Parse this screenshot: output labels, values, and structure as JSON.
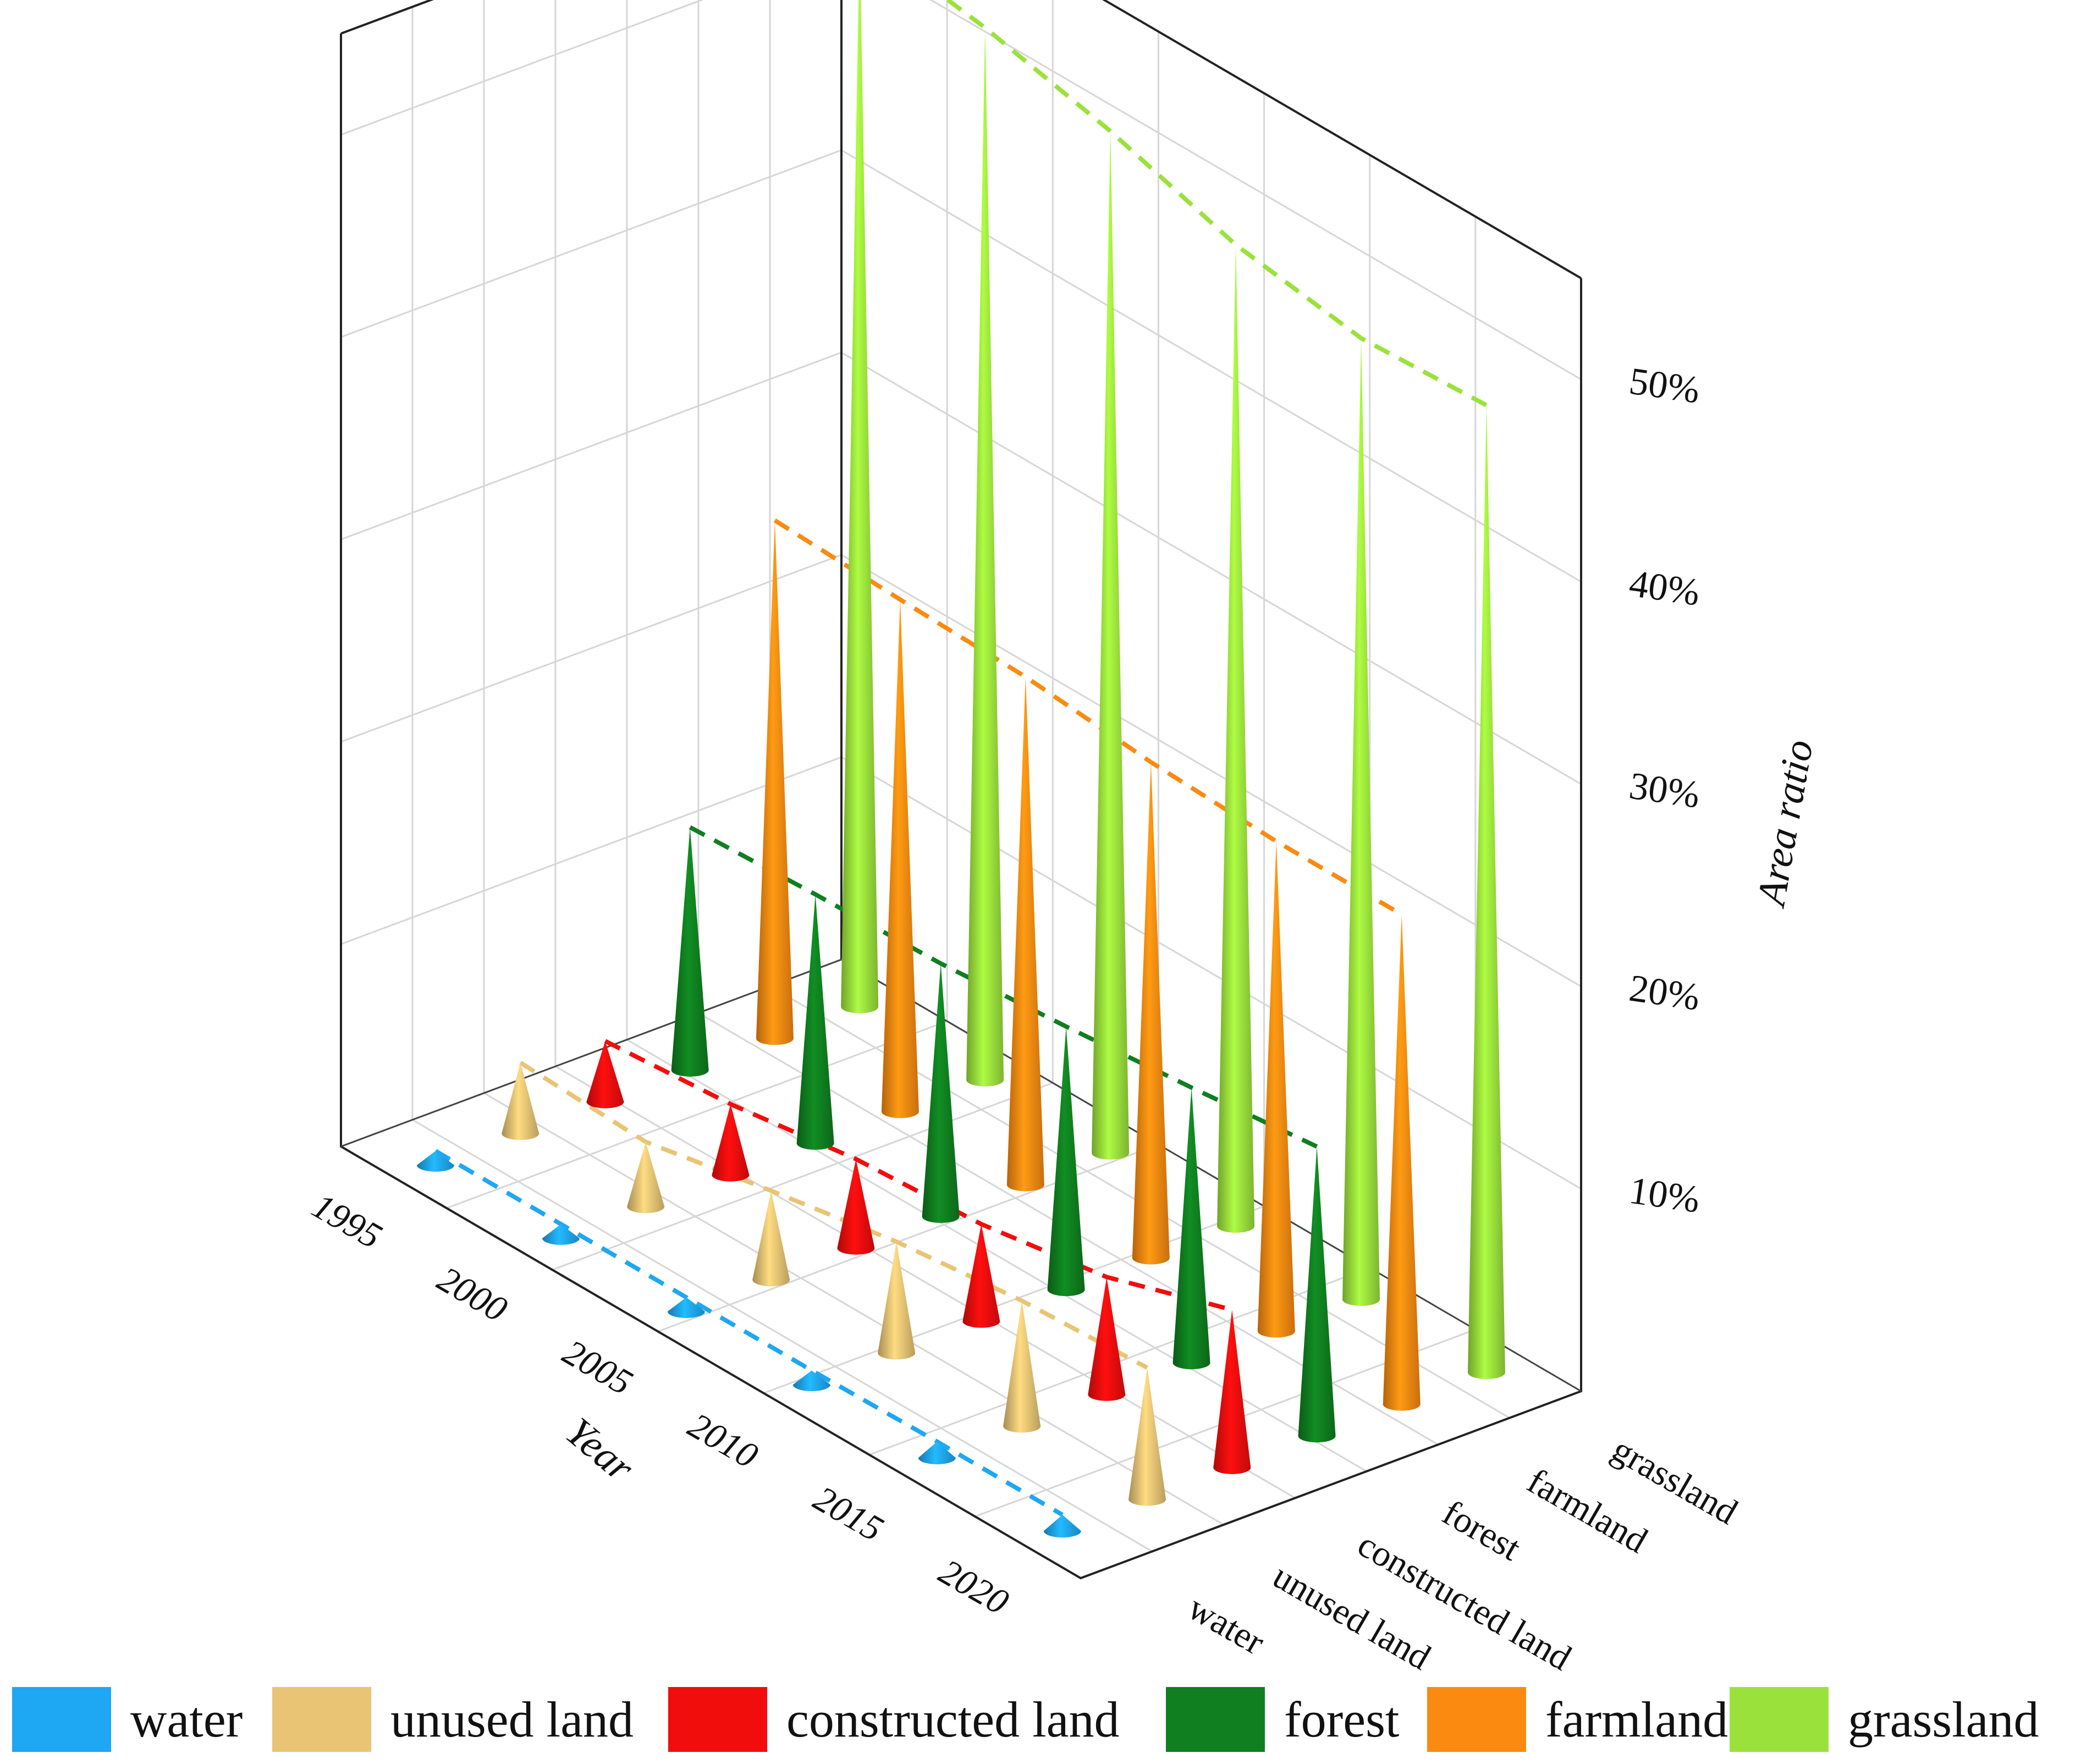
{
  "chart_data": {
    "type": "3d-cone-bar",
    "title": "",
    "xlabel": "Year",
    "ylabel": "",
    "zlabel": "Area ratio",
    "years": [
      "1995",
      "2000",
      "2005",
      "2010",
      "2015",
      "2020"
    ],
    "categories": [
      "water",
      "unused land",
      "constructed land",
      "forest",
      "farmland",
      "grassland"
    ],
    "z_ticks": [
      "10%",
      "20%",
      "30%",
      "40%",
      "50%"
    ],
    "zlim": [
      0,
      55
    ],
    "series": [
      {
        "name": "water",
        "color": "#1ea7f2",
        "values": [
          0.7,
          0.7,
          0.7,
          0.7,
          0.8,
          0.8
        ]
      },
      {
        "name": "unused land",
        "color": "#e8c474",
        "values": [
          3.5,
          3.2,
          4.4,
          5.5,
          6.2,
          6.5
        ]
      },
      {
        "name": "constructed land",
        "color": "#f20d0d",
        "values": [
          3.0,
          3.5,
          4.4,
          4.8,
          5.8,
          7.8
        ]
      },
      {
        "name": "forest",
        "color": "#0f7f1f",
        "values": [
          12.0,
          12.3,
          12.5,
          13.0,
          13.6,
          14.3
        ]
      },
      {
        "name": "farmland",
        "color": "#fb8a11",
        "values": [
          25.6,
          25.3,
          25.1,
          24.5,
          24.2,
          24.2
        ]
      },
      {
        "name": "grassland",
        "color": "#9be13c",
        "values": [
          53.0,
          52.0,
          50.5,
          48.5,
          47.5,
          47.8
        ]
      }
    ],
    "legend_position": "bottom",
    "grid": true
  }
}
